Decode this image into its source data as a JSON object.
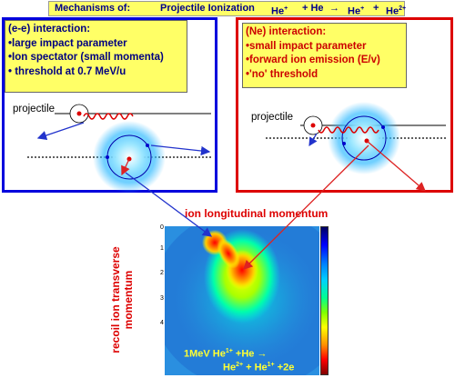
{
  "title": {
    "label": "Mechanisms of:",
    "process": "Projectile Ionization",
    "eq_he1": "He",
    "eq_he1_charge": "+",
    "eq_plus1": "+ He",
    "eq_arrow": "→",
    "eq_he2": "He",
    "eq_he2_charge": "+",
    "eq_plus2": "+",
    "eq_he3": "He",
    "eq_he3_charge": "2+"
  },
  "left_panel": {
    "lines": [
      "(e-e) interaction:",
      "•large impact parameter",
      "•Ion spectator (small momenta)",
      "• threshold at 0.7 MeV/u"
    ],
    "projectile_label": "projectile",
    "border_color": "#0000dd"
  },
  "right_panel": {
    "lines": [
      "(Ne) interaction:",
      "•small impact parameter",
      "•forward ion emission (E/v)",
      "•'no' threshold"
    ],
    "projectile_label": "projectile",
    "border_color": "#dd0000"
  },
  "plot": {
    "xlabel": "ion longitudinal momentum",
    "ylabel_line1": "recoil ion transverse",
    "ylabel_line2": "momentum",
    "y_ticks": [
      "0",
      "1",
      "2",
      "3",
      "4"
    ],
    "reaction_line1_a": "1MeV He",
    "reaction_line1_a_charge": "1+",
    "reaction_line1_b": " +He →",
    "reaction_line2_a": "He",
    "reaction_line2_a_charge": "2+",
    "reaction_line2_b": " + He",
    "reaction_line2_b_charge": "1+",
    "reaction_line2_c": " +2e"
  }
}
